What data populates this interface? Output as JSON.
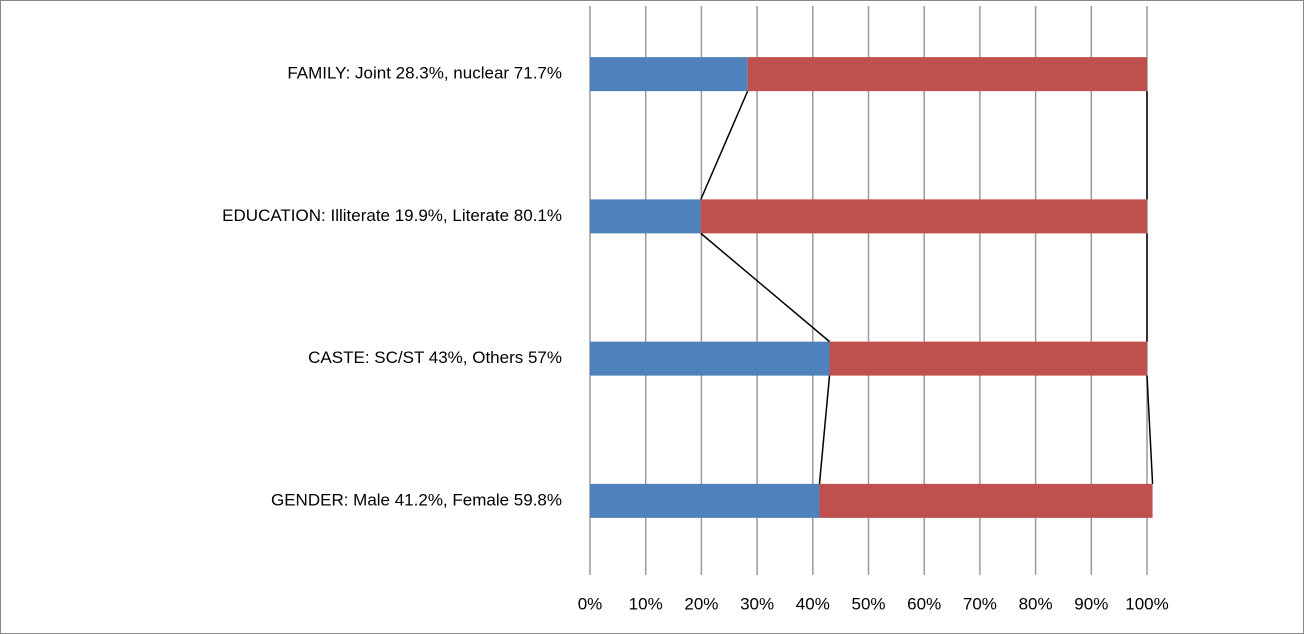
{
  "chart_data": {
    "type": "stacked-bar-horizontal",
    "categories": [
      "FAMILY: Joint 28.3%, nuclear 71.7%",
      "EDUCATION: Illiterate 19.9%, Literate 80.1%",
      "CASTE: SC/ST 43%, Others 57%",
      "GENDER: Male 41.2%, Female 59.8%"
    ],
    "series": [
      {
        "color": "#4f81bd",
        "values": [
          28.3,
          19.9,
          43,
          41.2
        ]
      },
      {
        "color": "#c0504d",
        "values": [
          71.7,
          80.1,
          57,
          59.8
        ]
      }
    ],
    "xlim": [
      0,
      100
    ],
    "xticks": [
      {
        "value": 0,
        "label": "0%"
      },
      {
        "value": 10,
        "label": "10%"
      },
      {
        "value": 20,
        "label": "20%"
      },
      {
        "value": 30,
        "label": "30%"
      },
      {
        "value": 40,
        "label": "40%"
      },
      {
        "value": 50,
        "label": "50%"
      },
      {
        "value": 60,
        "label": "60%"
      },
      {
        "value": 70,
        "label": "70%"
      },
      {
        "value": 80,
        "label": "80%"
      },
      {
        "value": 90,
        "label": "90%"
      },
      {
        "value": 100,
        "label": "100%"
      }
    ],
    "grid": true,
    "series_lines": true
  }
}
